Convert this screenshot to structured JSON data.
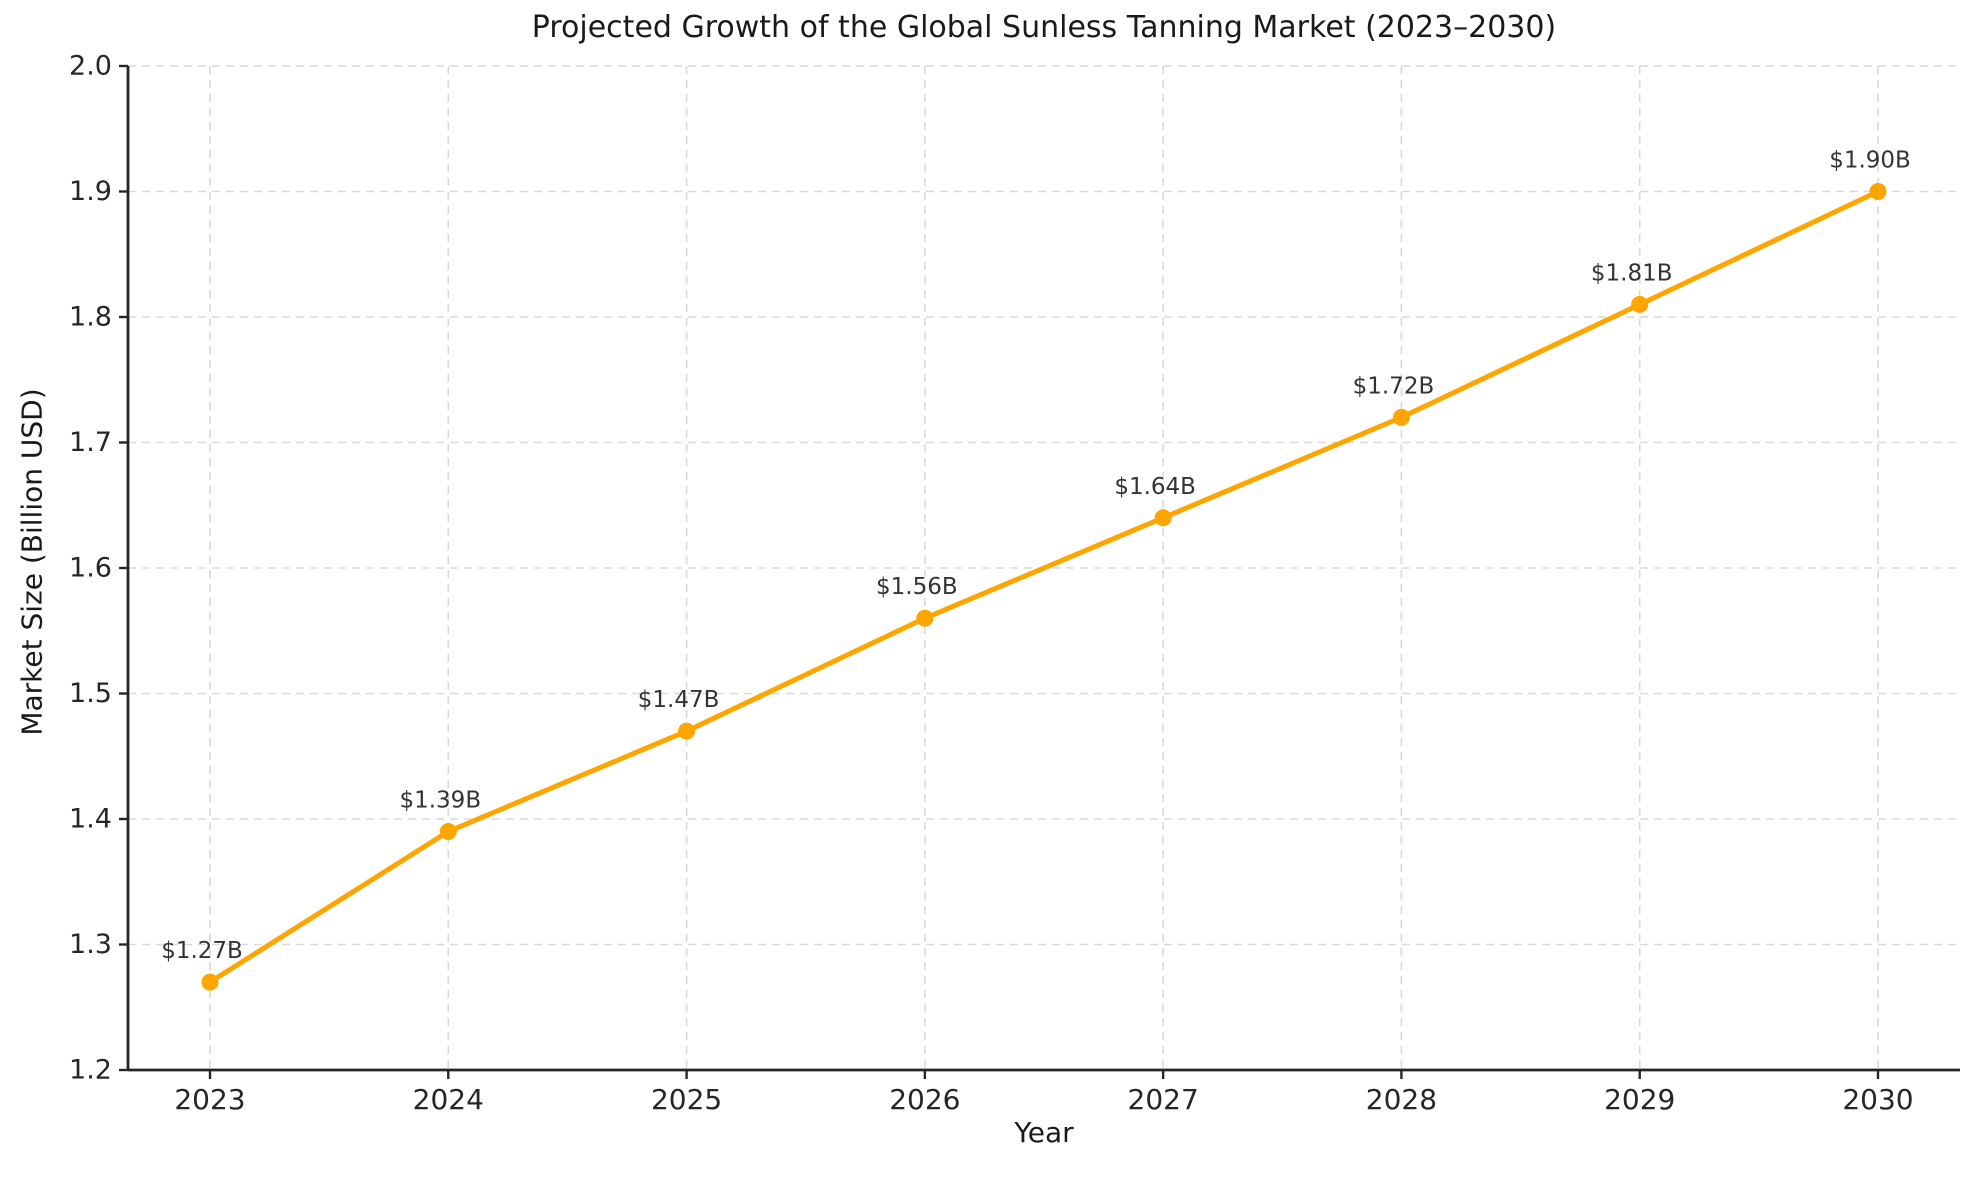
{
  "chart_data": {
    "type": "line",
    "title": "Projected Growth of the Global Sunless Tanning Market (2023–2030)",
    "xlabel": "Year",
    "ylabel": "Market Size (Billion USD)",
    "categories": [
      "2023",
      "2024",
      "2025",
      "2026",
      "2027",
      "2028",
      "2029",
      "2030"
    ],
    "series": [
      {
        "name": "Market Size",
        "values": [
          1.27,
          1.39,
          1.47,
          1.56,
          1.64,
          1.72,
          1.81,
          1.9
        ],
        "point_labels": [
          "$1.27B",
          "$1.39B",
          "$1.47B",
          "$1.56B",
          "$1.64B",
          "$1.72B",
          "$1.81B",
          "$1.90B"
        ],
        "line_color": "#FFA500",
        "marker": "circle"
      }
    ],
    "ylim": [
      1.2,
      2.0
    ],
    "yticks": [
      1.2,
      1.3,
      1.4,
      1.5,
      1.6,
      1.7,
      1.8,
      1.9,
      2.0
    ],
    "ytick_labels": [
      "1.2",
      "1.3",
      "1.4",
      "1.5",
      "1.6",
      "1.7",
      "1.8",
      "1.9",
      "2.0"
    ],
    "grid": true,
    "grid_style": "dashed",
    "grid_color": "#D9D9D9",
    "axis_color": "#262626",
    "background": "#FFFFFF",
    "legend": "none"
  }
}
